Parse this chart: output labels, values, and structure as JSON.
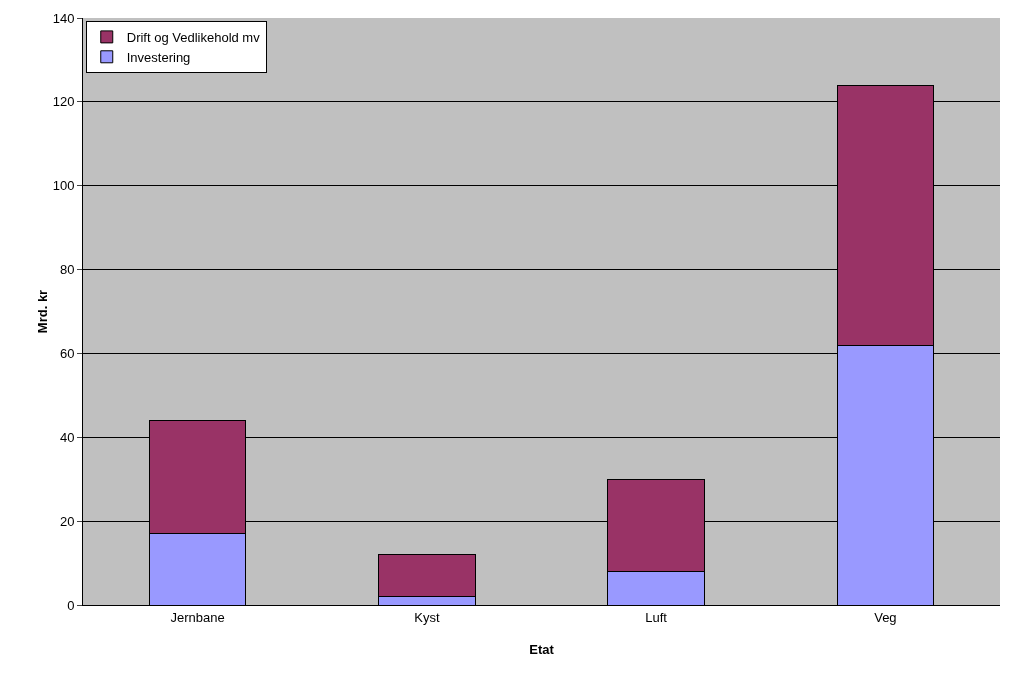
{
  "chart_data": {
    "type": "bar",
    "stacked": true,
    "xlabel": "Etat",
    "ylabel": "Mrd. kr",
    "categories": [
      "Jernbane",
      "Kyst",
      "Luft",
      "Veg"
    ],
    "series": [
      {
        "name": "Investering",
        "color": "#9999ff",
        "values": [
          17,
          2,
          8,
          62
        ]
      },
      {
        "name": "Drift og Vedlikehold mv",
        "color": "#993366",
        "values": [
          27,
          10,
          22,
          62
        ]
      }
    ],
    "ylim": [
      0,
      140
    ],
    "yticks": [
      0,
      20,
      40,
      60,
      80,
      100,
      120,
      140
    ],
    "grid": "y",
    "legend": "top left"
  }
}
